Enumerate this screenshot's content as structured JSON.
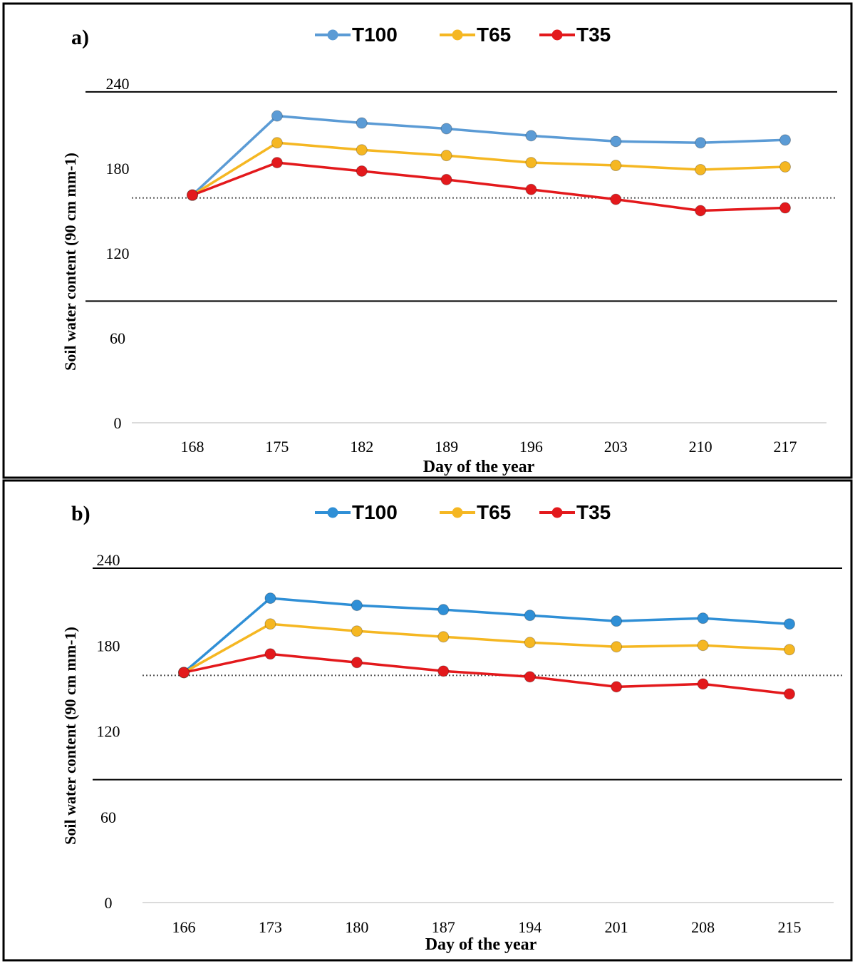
{
  "chart_data": [
    {
      "type": "line",
      "panel_label": "a)",
      "categories": [
        "168",
        "175",
        "182",
        "189",
        "196",
        "203",
        "210",
        "217"
      ],
      "series": [
        {
          "name": "T100",
          "color": "#5b9bd5",
          "values": [
            161,
            217,
            212,
            208,
            203,
            199,
            198,
            200
          ]
        },
        {
          "name": "T65",
          "color": "#f5b722",
          "values": [
            161,
            198,
            193,
            189,
            184,
            182,
            179,
            181
          ]
        },
        {
          "name": "T35",
          "color": "#e3191c",
          "values": [
            161,
            184,
            178,
            172,
            165,
            158,
            150,
            152
          ]
        }
      ],
      "xlabel": "Day of the year",
      "ylabel": "Soil water content (90 cm mm-1)",
      "yticks": [
        "0",
        "60",
        "120",
        "180",
        "240"
      ],
      "ylim": [
        0,
        240
      ],
      "reference_lines": {
        "solid_upper": 234,
        "solid_lower": 86,
        "dotted": 159
      },
      "legend_position": "top-center"
    },
    {
      "type": "line",
      "panel_label": "b)",
      "categories": [
        "166",
        "173",
        "180",
        "187",
        "194",
        "201",
        "208",
        "215"
      ],
      "series": [
        {
          "name": "T100",
          "color": "#2f8fd6",
          "values": [
            161,
            213,
            208,
            205,
            201,
            197,
            199,
            195
          ]
        },
        {
          "name": "T65",
          "color": "#f5b722",
          "values": [
            161,
            195,
            190,
            186,
            182,
            179,
            180,
            177
          ]
        },
        {
          "name": "T35",
          "color": "#e3191c",
          "values": [
            161,
            174,
            168,
            162,
            158,
            151,
            153,
            146
          ]
        }
      ],
      "xlabel": "Day of the year",
      "ylabel": "Soil water content (90 cm mm-1)",
      "yticks": [
        "0",
        "60",
        "120",
        "180",
        "240"
      ],
      "ylim": [
        0,
        240
      ],
      "reference_lines": {
        "solid_upper": 234,
        "solid_lower": 86,
        "dotted": 159
      },
      "legend_position": "top-center"
    }
  ]
}
